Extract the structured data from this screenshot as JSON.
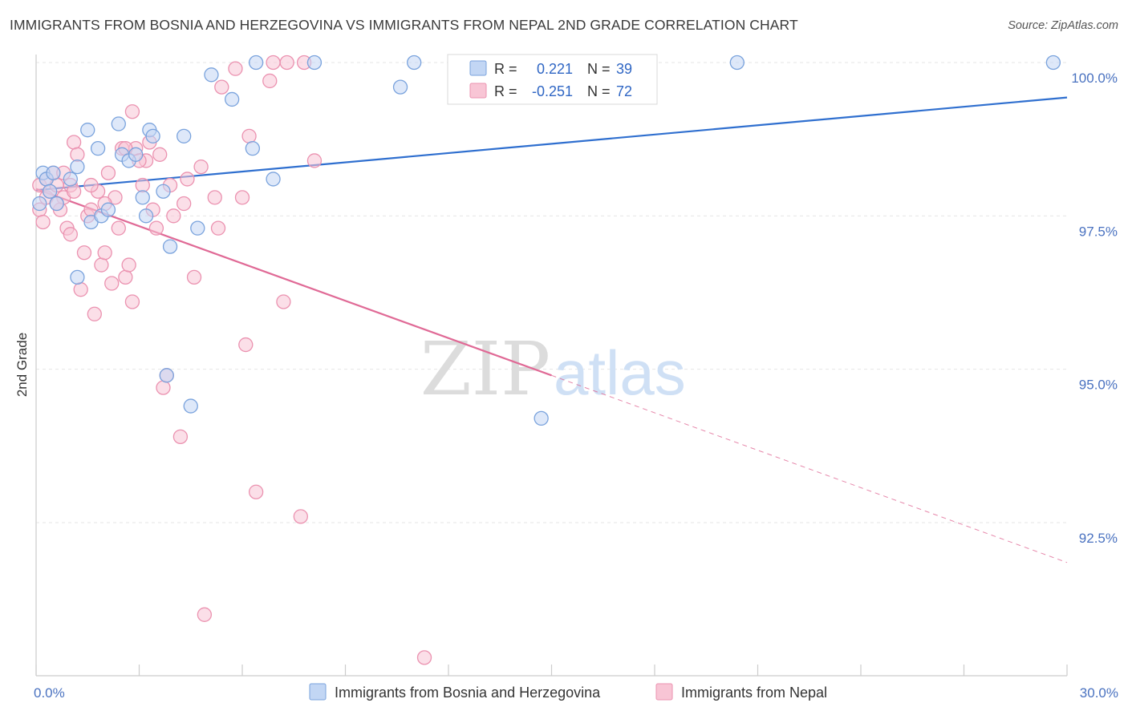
{
  "title": "IMMIGRANTS FROM BOSNIA AND HERZEGOVINA VS IMMIGRANTS FROM NEPAL 2ND GRADE CORRELATION CHART",
  "source": "Source: ZipAtlas.com",
  "watermark": {
    "zip": "ZIP",
    "atlas": "atlas"
  },
  "colors": {
    "blue_fill": "#c2d6f4",
    "blue_stroke": "#7aa3dd",
    "blue_line": "#2f6fcf",
    "pink_fill": "#f8c5d5",
    "pink_stroke": "#eb92b0",
    "pink_line": "#e06a96",
    "grid": "#e6e6e6",
    "tick_label": "#4a72c0"
  },
  "legend": {
    "r_label": "R =",
    "n_label": "N =",
    "blue": {
      "r": "0.221",
      "n": "39"
    },
    "pink": {
      "r": "-0.251",
      "n": "72"
    }
  },
  "chart_data": {
    "type": "scatter",
    "title": "IMMIGRANTS FROM BOSNIA AND HERZEGOVINA VS IMMIGRANTS FROM NEPAL 2ND GRADE CORRELATION CHART",
    "xlabel": "",
    "ylabel": "2nd Grade",
    "xlim": [
      0,
      30
    ],
    "ylim": [
      90.5,
      100.1
    ],
    "x_tick_labels": [
      "0.0%",
      "30.0%"
    ],
    "y_ticks": [
      100.0,
      97.5,
      95.0,
      92.5
    ],
    "y_tick_labels": [
      "100.0%",
      "97.5%",
      "95.0%",
      "92.5%"
    ],
    "grid": true,
    "legend_position": "top-center",
    "series": [
      {
        "name": "Immigrants from Bosnia and Herzegovina",
        "color": "#7aa3dd",
        "r": 0.221,
        "n": 39,
        "trend": {
          "x": [
            0,
            30
          ],
          "y": [
            97.92,
            99.43
          ],
          "style": "solid"
        },
        "points": [
          [
            0.1,
            97.7
          ],
          [
            0.2,
            98.2
          ],
          [
            0.3,
            98.1
          ],
          [
            0.4,
            97.9
          ],
          [
            0.5,
            98.2
          ],
          [
            0.6,
            97.7
          ],
          [
            1.0,
            98.1
          ],
          [
            1.2,
            98.3
          ],
          [
            1.5,
            98.9
          ],
          [
            1.6,
            97.4
          ],
          [
            1.8,
            98.6
          ],
          [
            1.9,
            97.5
          ],
          [
            2.1,
            97.6
          ],
          [
            2.4,
            99.0
          ],
          [
            2.5,
            98.5
          ],
          [
            2.7,
            98.4
          ],
          [
            2.9,
            98.5
          ],
          [
            3.1,
            97.8
          ],
          [
            3.2,
            97.5
          ],
          [
            3.3,
            98.9
          ],
          [
            3.4,
            98.8
          ],
          [
            3.7,
            97.9
          ],
          [
            3.8,
            94.9
          ],
          [
            3.9,
            97.0
          ],
          [
            4.3,
            98.8
          ],
          [
            4.5,
            94.4
          ],
          [
            4.7,
            97.3
          ],
          [
            5.1,
            99.8
          ],
          [
            5.7,
            99.4
          ],
          [
            6.3,
            98.6
          ],
          [
            6.4,
            100.0
          ],
          [
            6.9,
            98.1
          ],
          [
            8.1,
            100.0
          ],
          [
            10.6,
            99.6
          ],
          [
            11.0,
            100.0
          ],
          [
            14.7,
            94.2
          ],
          [
            1.2,
            96.5
          ],
          [
            20.4,
            100.0
          ],
          [
            29.6,
            100.0
          ]
        ]
      },
      {
        "name": "Immigrants from Nepal",
        "color": "#eb92b0",
        "r": -0.251,
        "n": 72,
        "trend": {
          "x": [
            0,
            15
          ],
          "y": [
            97.94,
            94.9
          ],
          "style": "solid",
          "dashed_to": [
            30,
            91.85
          ]
        },
        "points": [
          [
            0.1,
            97.6
          ],
          [
            0.1,
            98.0
          ],
          [
            0.2,
            97.4
          ],
          [
            0.3,
            97.8
          ],
          [
            0.3,
            98.1
          ],
          [
            0.4,
            97.9
          ],
          [
            0.5,
            98.2
          ],
          [
            0.6,
            98.0
          ],
          [
            0.7,
            97.6
          ],
          [
            0.8,
            97.8
          ],
          [
            0.8,
            98.2
          ],
          [
            0.9,
            97.3
          ],
          [
            1.0,
            97.2
          ],
          [
            1.0,
            98.0
          ],
          [
            1.1,
            98.7
          ],
          [
            1.2,
            98.5
          ],
          [
            1.3,
            96.3
          ],
          [
            1.4,
            96.9
          ],
          [
            1.5,
            97.5
          ],
          [
            1.6,
            97.6
          ],
          [
            1.7,
            95.9
          ],
          [
            1.8,
            97.9
          ],
          [
            1.9,
            96.7
          ],
          [
            2.0,
            96.9
          ],
          [
            2.1,
            98.2
          ],
          [
            2.2,
            96.4
          ],
          [
            2.3,
            97.8
          ],
          [
            2.4,
            97.3
          ],
          [
            2.5,
            98.6
          ],
          [
            2.6,
            96.5
          ],
          [
            2.7,
            96.7
          ],
          [
            2.8,
            99.2
          ],
          [
            2.8,
            96.1
          ],
          [
            2.9,
            98.6
          ],
          [
            3.1,
            98.0
          ],
          [
            3.2,
            98.4
          ],
          [
            3.3,
            98.7
          ],
          [
            3.4,
            97.6
          ],
          [
            3.5,
            97.3
          ],
          [
            3.6,
            98.5
          ],
          [
            3.7,
            94.7
          ],
          [
            3.8,
            94.9
          ],
          [
            4.0,
            97.5
          ],
          [
            4.2,
            93.9
          ],
          [
            4.3,
            97.7
          ],
          [
            4.4,
            98.1
          ],
          [
            4.6,
            96.5
          ],
          [
            4.8,
            98.3
          ],
          [
            4.9,
            91.0
          ],
          [
            5.2,
            97.8
          ],
          [
            5.3,
            97.3
          ],
          [
            5.4,
            99.6
          ],
          [
            5.8,
            99.9
          ],
          [
            6.0,
            97.8
          ],
          [
            6.1,
            95.4
          ],
          [
            6.2,
            98.8
          ],
          [
            6.4,
            93.0
          ],
          [
            6.8,
            99.7
          ],
          [
            6.9,
            100.0
          ],
          [
            7.2,
            96.1
          ],
          [
            7.3,
            100.0
          ],
          [
            7.7,
            92.6
          ],
          [
            7.8,
            100.0
          ],
          [
            8.1,
            98.4
          ],
          [
            11.3,
            90.3
          ],
          [
            2.0,
            97.7
          ],
          [
            1.6,
            98.0
          ],
          [
            2.6,
            98.6
          ],
          [
            3.0,
            98.4
          ],
          [
            1.1,
            97.9
          ],
          [
            0.6,
            97.7
          ],
          [
            3.9,
            98.0
          ]
        ]
      }
    ]
  }
}
